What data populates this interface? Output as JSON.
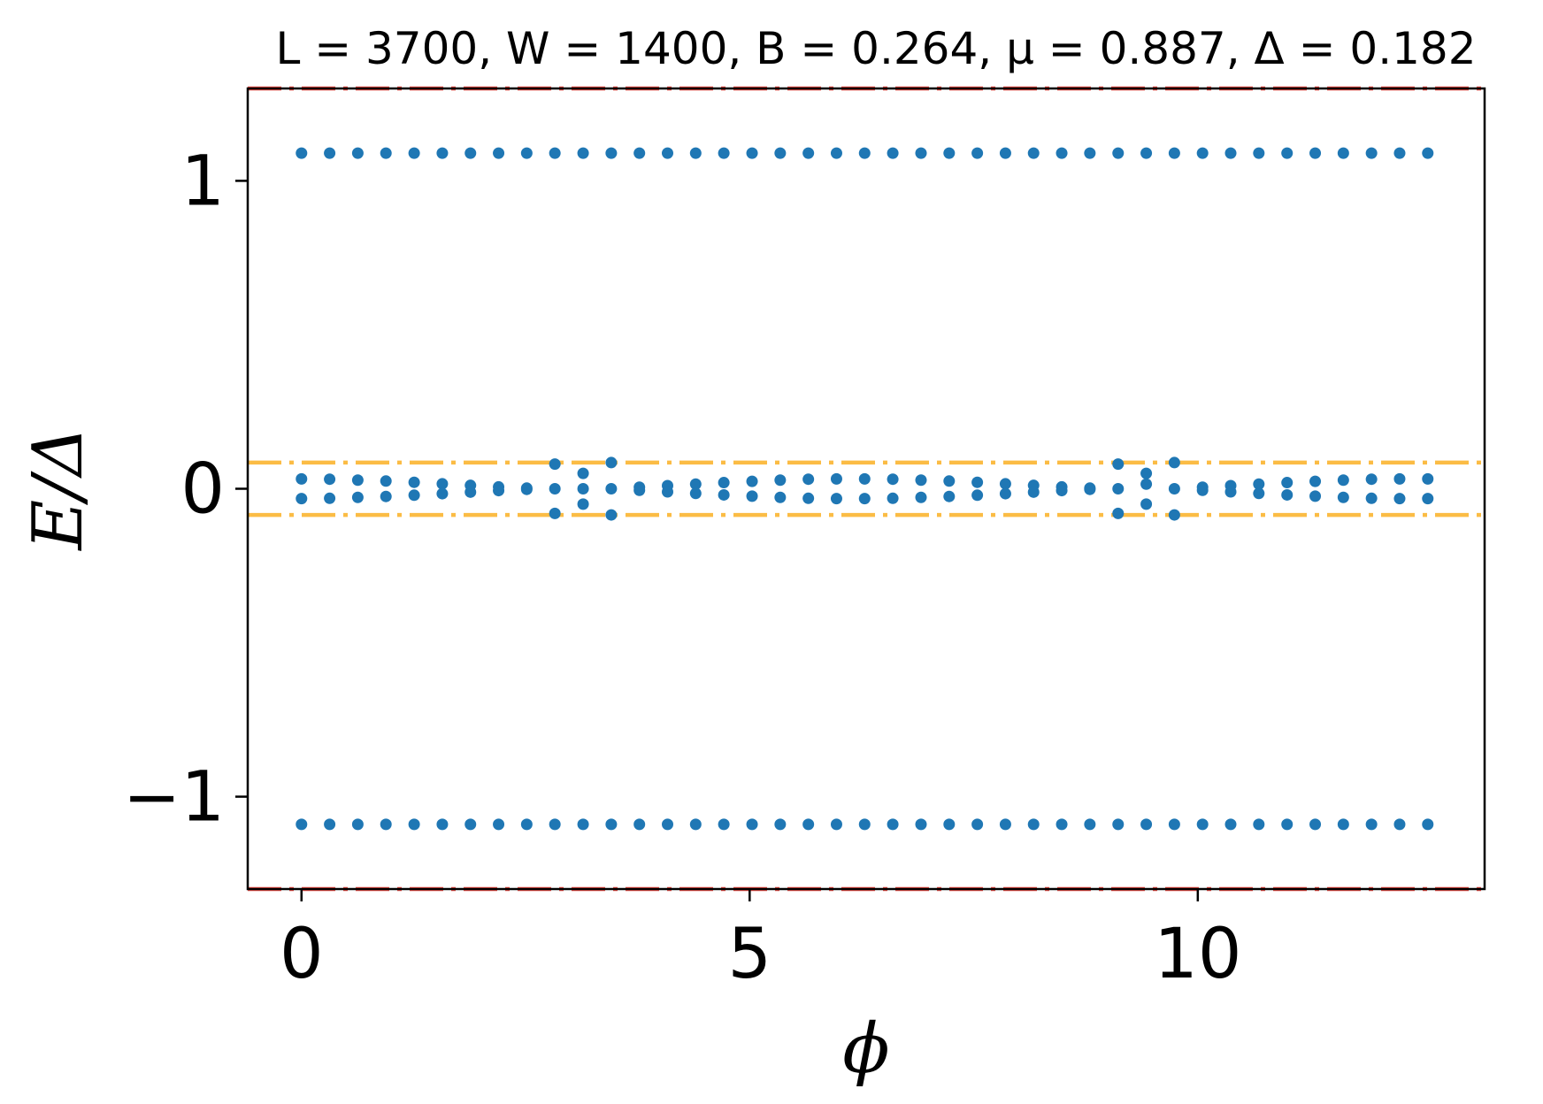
{
  "chart_data": {
    "type": "scatter",
    "title": "L = 3700, W = 1400, B = 0.264, μ = 0.887, Δ = 0.182",
    "xlabel": "ϕ",
    "ylabel": "E/Δ",
    "xlim": [
      -0.6,
      13.2
    ],
    "ylim": [
      -1.3,
      1.3
    ],
    "xticks": [
      0,
      5,
      10
    ],
    "xtick_labels": [
      "0",
      "5",
      "10"
    ],
    "yticks": [
      -1,
      0,
      1
    ],
    "ytick_labels": [
      "−1",
      "0",
      "1"
    ],
    "grid": false,
    "legend": "none",
    "colors": {
      "points": "#1f77b4",
      "band_edge": "#e8473f",
      "gap_line": "#fbbc45"
    },
    "reference_lines": [
      {
        "y": 1.3,
        "style": "dash-dot",
        "color": "#e8473f"
      },
      {
        "y": -1.3,
        "style": "dash-dot",
        "color": "#e8473f"
      },
      {
        "y": 0.085,
        "style": "dash-dot",
        "color": "#fbbc45"
      },
      {
        "y": -0.085,
        "style": "dash-dot",
        "color": "#fbbc45"
      }
    ],
    "x": [
      0.0,
      0.314,
      0.628,
      0.942,
      1.257,
      1.571,
      1.885,
      2.199,
      2.513,
      2.827,
      3.142,
      3.456,
      3.77,
      4.084,
      4.398,
      4.712,
      5.027,
      5.341,
      5.655,
      5.969,
      6.283,
      6.597,
      6.912,
      7.226,
      7.54,
      7.854,
      8.168,
      8.482,
      8.796,
      9.111,
      9.425,
      9.739,
      10.053,
      10.367,
      10.681,
      10.996,
      11.31,
      11.624,
      11.938,
      12.252,
      12.566
    ],
    "series": [
      {
        "values": [
          1.09,
          1.09,
          1.09,
          1.09,
          1.09,
          1.09,
          1.09,
          1.09,
          1.09,
          1.09,
          1.09,
          1.09,
          1.09,
          1.09,
          1.09,
          1.09,
          1.09,
          1.09,
          1.09,
          1.09,
          1.09,
          1.09,
          1.09,
          1.09,
          1.09,
          1.09,
          1.09,
          1.09,
          1.09,
          1.09,
          1.09,
          1.09,
          1.09,
          1.09,
          1.09,
          1.09,
          1.09,
          1.09,
          1.09,
          1.09,
          1.09
        ]
      },
      {
        "values": [
          0.032,
          0.031,
          0.028,
          0.025,
          0.021,
          0.016,
          0.011,
          0.006,
          0.002,
          0.08,
          0.05,
          0.085,
          0.005,
          0.01,
          0.015,
          0.02,
          0.024,
          0.028,
          0.031,
          0.032,
          0.032,
          0.031,
          0.028,
          0.025,
          0.021,
          0.016,
          0.011,
          0.006,
          0.002,
          0.08,
          0.05,
          0.085,
          0.005,
          0.01,
          0.015,
          0.02,
          0.024,
          0.028,
          0.031,
          0.032,
          0.032
        ]
      },
      {
        "values": [
          -0.032,
          -0.031,
          -0.028,
          -0.025,
          -0.021,
          -0.016,
          -0.011,
          -0.006,
          -0.002,
          0.0,
          0.0,
          0.0,
          -0.005,
          -0.01,
          -0.015,
          -0.02,
          -0.024,
          -0.028,
          -0.031,
          -0.032,
          -0.032,
          -0.031,
          -0.028,
          -0.025,
          -0.021,
          -0.016,
          -0.011,
          -0.006,
          -0.002,
          0.0,
          0.015,
          0.0,
          -0.005,
          -0.01,
          -0.015,
          -0.02,
          -0.024,
          -0.028,
          -0.031,
          -0.032,
          -0.032
        ]
      },
      {
        "values": [
          null,
          null,
          null,
          null,
          null,
          null,
          null,
          null,
          null,
          -0.08,
          -0.05,
          -0.085,
          null,
          null,
          null,
          null,
          null,
          null,
          null,
          null,
          null,
          null,
          null,
          null,
          null,
          null,
          null,
          null,
          null,
          -0.08,
          -0.05,
          -0.085,
          null,
          null,
          null,
          null,
          null,
          null,
          null,
          null,
          null
        ]
      },
      {
        "values": [
          -1.09,
          -1.09,
          -1.09,
          -1.09,
          -1.09,
          -1.09,
          -1.09,
          -1.09,
          -1.09,
          -1.09,
          -1.09,
          -1.09,
          -1.09,
          -1.09,
          -1.09,
          -1.09,
          -1.09,
          -1.09,
          -1.09,
          -1.09,
          -1.09,
          -1.09,
          -1.09,
          -1.09,
          -1.09,
          -1.09,
          -1.09,
          -1.09,
          -1.09,
          -1.09,
          -1.09,
          -1.09,
          -1.09,
          -1.09,
          -1.09,
          -1.09,
          -1.09,
          -1.09,
          -1.09,
          -1.09,
          -1.09
        ]
      }
    ]
  }
}
